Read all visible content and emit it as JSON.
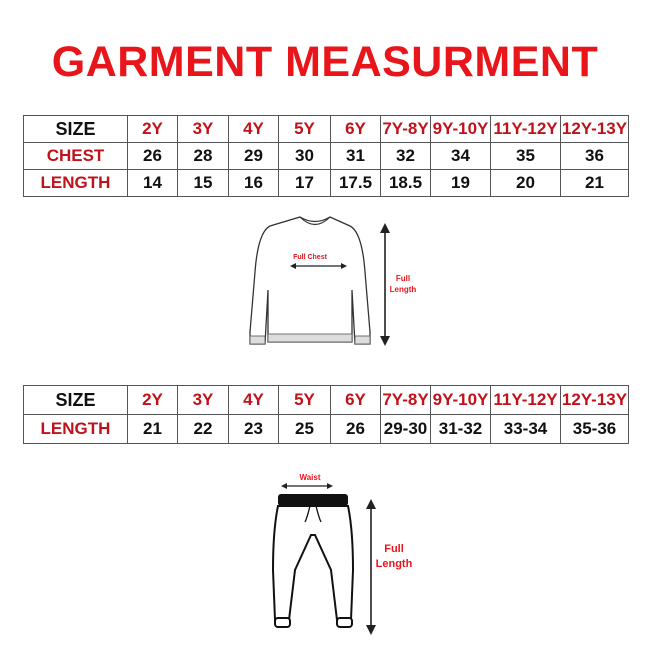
{
  "title": "GARMENT MEASURMENT",
  "top_table": {
    "header": "SIZE",
    "sizes": [
      "2Y",
      "3Y",
      "4Y",
      "5Y",
      "6Y",
      "7Y-8Y",
      "9Y-10Y",
      "11Y-12Y",
      "12Y-13Y"
    ],
    "rows": [
      {
        "label": "CHEST",
        "values": [
          "26",
          "28",
          "29",
          "30",
          "31",
          "32",
          "34",
          "35",
          "36"
        ]
      },
      {
        "label": "LENGTH",
        "values": [
          "14",
          "15",
          "16",
          "17",
          "17.5",
          "18.5",
          "19",
          "20",
          "21"
        ]
      }
    ]
  },
  "sweater_diagram": {
    "chest_label": "Full Chest",
    "length_label_1": "Full",
    "length_label_2": "Length"
  },
  "bottom_table": {
    "header": "SIZE",
    "sizes": [
      "2Y",
      "3Y",
      "4Y",
      "5Y",
      "6Y",
      "7Y-8Y",
      "9Y-10Y",
      "11Y-12Y",
      "12Y-13Y"
    ],
    "rows": [
      {
        "label": "LENGTH",
        "values": [
          "21",
          "22",
          "23",
          "25",
          "26",
          "29-30",
          "31-32",
          "33-34",
          "35-36"
        ]
      }
    ]
  },
  "pants_diagram": {
    "waist_label": "Waist",
    "length_label_1": "Full",
    "length_label_2": "Length"
  },
  "colors": {
    "accent_red": "#e8161b",
    "label_dark_red": "#c0121a"
  }
}
